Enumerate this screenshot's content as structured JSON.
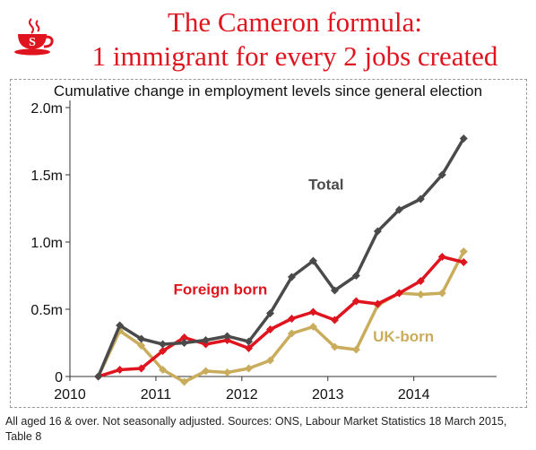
{
  "header": {
    "title_line1": "The Cameron formula:",
    "title_line2": "1 immigrant for every 2 jobs created",
    "logo_letter": "S"
  },
  "footnote": "All aged 16 & over. Not seasonally adjusted. Sources: ONS, Labour Market Statistics 18 March 2015, Table 8",
  "colors": {
    "title": "#e0141e",
    "total": "#4a4a4a",
    "foreign_born": "#e0141e",
    "uk_born": "#c9ad5c",
    "axis": "#333333"
  },
  "chart_data": {
    "type": "line",
    "title": "Cumulative change in employment levels since general election",
    "xlabel": "",
    "ylabel": "",
    "xlim": [
      2010,
      2014.9
    ],
    "ylim": [
      0,
      2.0
    ],
    "x_ticks": [
      2010,
      2011,
      2012,
      2013,
      2014
    ],
    "x_tick_labels": [
      "2010",
      "2011",
      "2012",
      "2013",
      "2014"
    ],
    "y_ticks": [
      0,
      0.5,
      1.0,
      1.5,
      2.0
    ],
    "y_tick_labels": [
      "0",
      "0.5m",
      "1.0m",
      "1.5m",
      "2.0m"
    ],
    "grid": false,
    "legend": "inline labels",
    "x": [
      2010.33,
      2010.58,
      2010.83,
      2011.08,
      2011.33,
      2011.58,
      2011.83,
      2012.08,
      2012.33,
      2012.58,
      2012.83,
      2013.08,
      2013.33,
      2013.58,
      2013.83,
      2014.08,
      2014.33,
      2014.58
    ],
    "series": [
      {
        "name": "Total",
        "color": "#4a4a4a",
        "label_at": [
          2012.98,
          1.39
        ],
        "values": [
          0.0,
          0.38,
          0.28,
          0.24,
          0.25,
          0.27,
          0.3,
          0.26,
          0.47,
          0.74,
          0.86,
          0.64,
          0.75,
          1.08,
          1.24,
          1.32,
          1.5,
          1.77
        ]
      },
      {
        "name": "Foreign born",
        "color": "#e0141e",
        "label_at": [
          2011.75,
          0.61
        ],
        "values": [
          0.0,
          0.05,
          0.06,
          0.19,
          0.29,
          0.24,
          0.27,
          0.21,
          0.35,
          0.43,
          0.48,
          0.42,
          0.56,
          0.54,
          0.62,
          0.71,
          0.89,
          0.85
        ]
      },
      {
        "name": "UK-born",
        "color": "#c9ad5c",
        "label_at": [
          2013.88,
          0.26
        ],
        "values": [
          0.0,
          0.34,
          0.23,
          0.05,
          -0.04,
          0.04,
          0.03,
          0.06,
          0.12,
          0.32,
          0.37,
          0.22,
          0.2,
          0.53,
          0.62,
          0.61,
          0.62,
          0.93
        ]
      }
    ]
  }
}
